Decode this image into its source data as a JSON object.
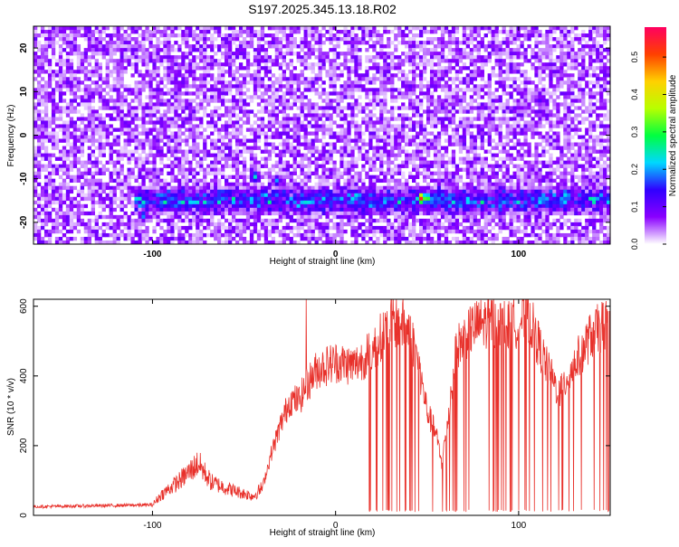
{
  "title": "S197.2025.345.13.18.R02",
  "chart_data": [
    {
      "type": "heatmap",
      "xlabel": "Height of straight line (km)",
      "ylabel": "Frequency (Hz)",
      "xlim": [
        -165,
        150
      ],
      "ylim": [
        -25,
        25
      ],
      "x_ticks": [
        -100,
        0,
        100
      ],
      "y_ticks": [
        -20,
        -10,
        0,
        10,
        20
      ],
      "colorbar": {
        "label": "Normalized spectral amplitude",
        "range": [
          0,
          0.58
        ],
        "ticks": [
          0.0,
          0.1,
          0.2,
          0.3,
          0.4,
          0.5
        ],
        "tick_labels": [
          "0.0",
          "0.1",
          "0.2",
          "0.3",
          "0.4",
          "0.5"
        ],
        "colormap": [
          "#ffffff",
          "#8a00ff",
          "#3000ff",
          "#00d8ff",
          "#00ff40",
          "#b8ff00",
          "#ffd000",
          "#ff4000",
          "#ff0060"
        ]
      },
      "band": {
        "frequency": -15,
        "x_start": -110,
        "x_end": 150,
        "typical_amplitude": 0.15
      },
      "hotspots": [
        {
          "x": 47,
          "y": -14.5,
          "value": 0.55
        },
        {
          "x": 51,
          "y": -14.5,
          "value": 0.32
        },
        {
          "x": 12,
          "y": -14,
          "value": 0.27
        },
        {
          "x": 30,
          "y": -14.5,
          "value": 0.22
        },
        {
          "x": 72,
          "y": -15,
          "value": 0.25
        },
        {
          "x": 126,
          "y": -13.5,
          "value": 0.25
        },
        {
          "x": -44,
          "y": -9.5,
          "value": 0.24
        },
        {
          "x": -32,
          "y": -10.5,
          "value": 0.2
        },
        {
          "x": -105,
          "y": -18.5,
          "value": 0.2
        },
        {
          "x": -84,
          "y": -13,
          "value": 0.18
        },
        {
          "x": -65,
          "y": -14.5,
          "value": 0.17
        },
        {
          "x": -4,
          "y": -14,
          "value": 0.18
        },
        {
          "x": 26,
          "y": -16.5,
          "value": 0.16
        },
        {
          "x": 143,
          "y": -14.5,
          "value": 0.2
        },
        {
          "x": 90,
          "y": -15,
          "value": 0.18
        },
        {
          "x": 108,
          "y": -14.5,
          "value": 0.19
        },
        {
          "x": 40,
          "y": 11,
          "value": 0.12
        },
        {
          "x": 111,
          "y": 8,
          "value": 0.12
        }
      ]
    },
    {
      "type": "line",
      "xlabel": "Height of straight line (km)",
      "ylabel": "SNR (10 * v/v)",
      "xlim": [
        -165,
        150
      ],
      "ylim": [
        0,
        620
      ],
      "x_ticks": [
        -100,
        0,
        100
      ],
      "y_ticks": [
        0,
        200,
        400,
        600
      ],
      "color": "#e8302a",
      "envelope": [
        {
          "x": -165,
          "y": 25
        },
        {
          "x": -100,
          "y": 30
        },
        {
          "x": -95,
          "y": 60
        },
        {
          "x": -85,
          "y": 100
        },
        {
          "x": -75,
          "y": 150
        },
        {
          "x": -68,
          "y": 95
        },
        {
          "x": -55,
          "y": 70
        },
        {
          "x": -45,
          "y": 55
        },
        {
          "x": -40,
          "y": 80
        },
        {
          "x": -35,
          "y": 180
        },
        {
          "x": -30,
          "y": 260
        },
        {
          "x": -25,
          "y": 330
        },
        {
          "x": -20,
          "y": 330
        },
        {
          "x": -15,
          "y": 380
        },
        {
          "x": -10,
          "y": 420
        },
        {
          "x": 0,
          "y": 440
        },
        {
          "x": 10,
          "y": 430
        },
        {
          "x": 20,
          "y": 470
        },
        {
          "x": 30,
          "y": 560
        },
        {
          "x": 40,
          "y": 540
        },
        {
          "x": 45,
          "y": 440
        },
        {
          "x": 50,
          "y": 300
        },
        {
          "x": 55,
          "y": 230
        },
        {
          "x": 58,
          "y": 150
        },
        {
          "x": 62,
          "y": 300
        },
        {
          "x": 66,
          "y": 480
        },
        {
          "x": 75,
          "y": 540
        },
        {
          "x": 85,
          "y": 560
        },
        {
          "x": 95,
          "y": 540
        },
        {
          "x": 105,
          "y": 580
        },
        {
          "x": 115,
          "y": 430
        },
        {
          "x": 122,
          "y": 350
        },
        {
          "x": 130,
          "y": 430
        },
        {
          "x": 140,
          "y": 520
        },
        {
          "x": 150,
          "y": 560
        }
      ],
      "dropout_start": 17,
      "dropout_value": 10,
      "peak": {
        "x": -16,
        "y": 620
      }
    }
  ]
}
